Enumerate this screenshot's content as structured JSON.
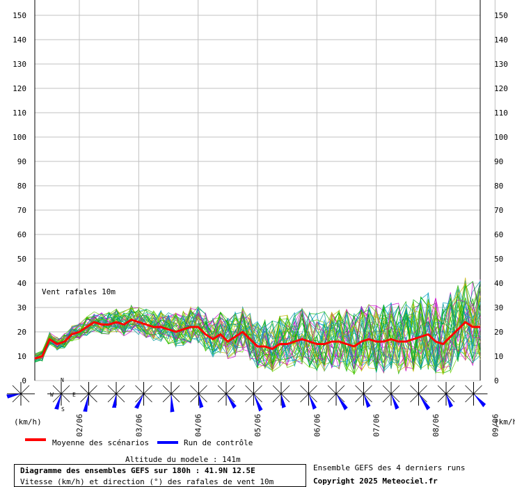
{
  "chart_data": {
    "type": "line",
    "title": "Diagramme des ensembles GEFS sur 180h : 41.9N 12.5E",
    "subtitle": "Vitesse (km/h) et direction (°) des rafales de vent 10m",
    "annotation": "Vent rafales 10m",
    "ylabel": "(km/h)",
    "ylim": [
      0,
      150
    ],
    "y_ticks": [
      "0",
      "10",
      "20",
      "30",
      "40",
      "50",
      "60",
      "70",
      "80",
      "90",
      "100",
      "110",
      "120",
      "130",
      "140",
      "150"
    ],
    "x_ticks": [
      "02/06",
      "03/06",
      "04/06",
      "05/06",
      "06/06",
      "07/06",
      "08/06",
      "09/06"
    ],
    "x_range_hours": [
      0,
      180
    ],
    "grid": true,
    "series": [
      {
        "name": "Moyenne des scénarios",
        "color": "#ff0000",
        "x_hours": [
          0,
          3,
          6,
          9,
          12,
          15,
          18,
          21,
          24,
          27,
          30,
          33,
          36,
          39,
          42,
          45,
          48,
          51,
          54,
          57,
          60,
          63,
          66,
          69,
          72,
          75,
          78,
          81,
          84,
          87,
          90,
          93,
          96,
          99,
          102,
          105,
          108,
          111,
          114,
          117,
          120,
          123,
          126,
          129,
          132,
          135,
          138,
          141,
          144,
          147,
          150,
          153,
          156,
          159,
          162,
          165,
          168,
          171,
          174,
          177,
          180
        ],
        "values": [
          9,
          10,
          17,
          15,
          16,
          19,
          20,
          22,
          24,
          23,
          23,
          24,
          23,
          25,
          24,
          23,
          22,
          22,
          21,
          20,
          21,
          22,
          22,
          19,
          17,
          19,
          16,
          18,
          20,
          17,
          14,
          14,
          13,
          15,
          15,
          16,
          17,
          16,
          15,
          15,
          16,
          16,
          15,
          14,
          16,
          17,
          16,
          16,
          17,
          16,
          16,
          17,
          18,
          19,
          16,
          15,
          18,
          21,
          24,
          22,
          22
        ]
      },
      {
        "name": "Run de contrôle",
        "color": "#0000ff",
        "x_hours": [],
        "values": []
      }
    ],
    "ensemble_colors": [
      "#00b000",
      "#66cc00",
      "#cc00cc",
      "#c8b400",
      "#00a0c0",
      "#009999"
    ],
    "wind_direction_deg": [
      250,
      190,
      185,
      180,
      200,
      170,
      160,
      140,
      150,
      160,
      150,
      140,
      150,
      150,
      140,
      150,
      130
    ],
    "legend_placement": "bottom-left"
  },
  "footer": {
    "altitude": "Altitude du modele : 141m",
    "runs_note": "Ensemble GEFS des 4 derniers runs",
    "copyright": "Copyright 2025 Meteociel.fr"
  },
  "compass": {
    "n": "N",
    "w": "W",
    "e": "E",
    "s": "S"
  }
}
